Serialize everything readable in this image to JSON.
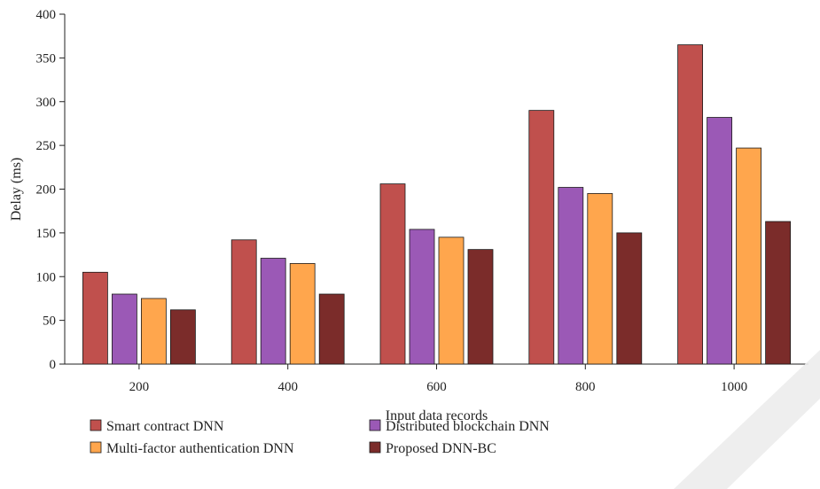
{
  "chart_data": {
    "type": "bar",
    "title": "",
    "xlabel": "Input data records",
    "ylabel": "Delay (ms)",
    "ylim": [
      0,
      400
    ],
    "yticks": [
      0,
      50,
      100,
      150,
      200,
      250,
      300,
      350,
      400
    ],
    "categories": [
      "200",
      "400",
      "600",
      "800",
      "1000"
    ],
    "series": [
      {
        "name": "Smart contract DNN",
        "color": "#c0504d",
        "values": [
          105,
          142,
          206,
          290,
          365
        ]
      },
      {
        "name": "Distributed blockchain DNN",
        "color": "#9b59b6",
        "values": [
          80,
          121,
          154,
          202,
          282
        ]
      },
      {
        "name": "Multi-factor authentication DNN",
        "color": "#ffa64d",
        "values": [
          75,
          115,
          145,
          195,
          247
        ]
      },
      {
        "name": "Proposed DNN-BC",
        "color": "#7b2c2a",
        "values": [
          62,
          80,
          131,
          150,
          163
        ]
      }
    ],
    "grid": false,
    "legend_position": "bottom-left"
  }
}
